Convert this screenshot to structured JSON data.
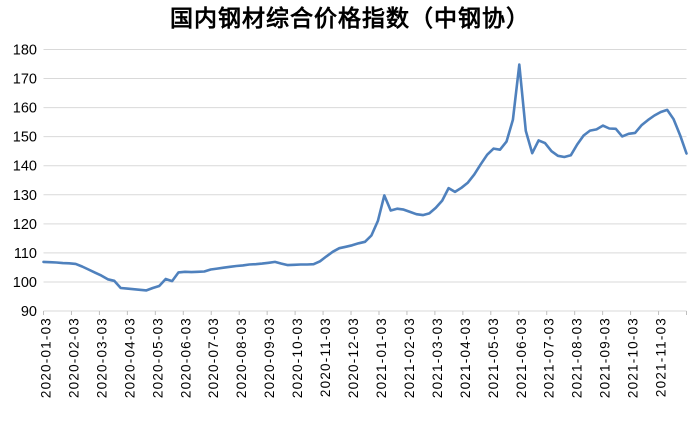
{
  "chart_data": {
    "type": "line",
    "title": "国内钢材综合价格指数（中钢协）",
    "xlabel": "",
    "ylabel": "",
    "ylim": [
      90,
      180
    ],
    "y_ticks": [
      180,
      170,
      160,
      150,
      140,
      130,
      120,
      110,
      100,
      90
    ],
    "x_tick_labels": [
      "2020-01-03",
      "2020-02-03",
      "2020-03-03",
      "2020-04-03",
      "2020-05-03",
      "2020-06-03",
      "2020-07-03",
      "2020-08-03",
      "2020-09-03",
      "2020-10-03",
      "2020-11-03",
      "2020-12-03",
      "2021-01-03",
      "2021-02-03",
      "2021-03-03",
      "2021-04-03",
      "2021-05-03",
      "2021-06-03",
      "2021-07-03",
      "2021-08-03",
      "2021-09-03",
      "2021-10-03",
      "2021-11-03"
    ],
    "grid": "horizontal",
    "legend": "none",
    "colors": {
      "line": "#4F81BD",
      "gridline": "#D9D9D9",
      "axis": "#BFBFBF",
      "text": "#000000",
      "background": "#FFFFFF"
    },
    "series": [
      {
        "values": [
          106.9,
          106.8,
          106.7,
          106.5,
          106.4,
          106.2,
          105.3,
          104.3,
          103.2,
          102.2,
          100.9,
          100.4,
          97.9,
          97.7,
          97.5,
          97.3,
          97.1,
          97.9,
          98.6,
          101.0,
          100.3,
          103.3,
          103.5,
          103.4,
          103.5,
          103.6,
          104.3,
          104.6,
          104.9,
          105.2,
          105.5,
          105.7,
          106.0,
          106.1,
          106.3,
          106.6,
          106.9,
          106.3,
          105.8,
          105.9,
          106.0,
          106.0,
          106.1,
          107.1,
          108.8,
          110.4,
          111.6,
          112.1,
          112.6,
          113.3,
          113.8,
          116.0,
          121.0,
          129.8,
          124.6,
          125.2,
          124.9,
          124.1,
          123.3,
          123.0,
          123.6,
          125.5,
          128.0,
          132.3,
          131.0,
          132.4,
          134.2,
          137.0,
          140.5,
          143.8,
          145.9,
          145.5,
          148.3,
          155.8,
          174.8,
          152.0,
          144.3,
          148.7,
          147.8,
          145.0,
          143.4,
          143.0,
          143.6,
          147.3,
          150.4,
          152.1,
          152.5,
          153.8,
          152.8,
          152.7,
          150.1,
          151.0,
          151.3,
          153.9,
          155.7,
          157.3,
          158.5,
          159.2,
          156.0,
          150.5,
          144.2
        ]
      }
    ]
  }
}
